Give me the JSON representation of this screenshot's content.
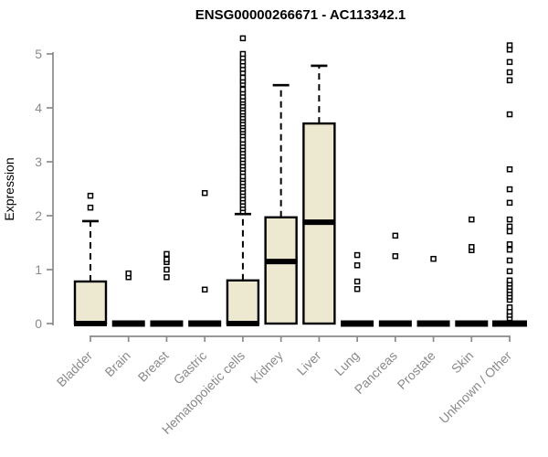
{
  "chart_data": {
    "type": "boxplot",
    "title": "ENSG00000266671 - AC113342.1",
    "xlabel": "",
    "ylabel": "Expression",
    "ylim": [
      0,
      5
    ],
    "yticks": [
      0,
      1,
      2,
      3,
      4,
      5
    ],
    "grid": false,
    "legend": null,
    "colors": {
      "box_fill": "#EDE8D0",
      "box_border": "#000000",
      "median": "#000000",
      "axis": "#8A8A8A",
      "tick_label": "#8A8A8A",
      "title": "#000000",
      "background": "#FFFFFF"
    },
    "categories": [
      {
        "label": "Bladder",
        "q1": 0,
        "median": 0,
        "q3": 0.78,
        "whisker_low": 0,
        "whisker_high": 1.9,
        "outliers": [
          2.15,
          2.37
        ]
      },
      {
        "label": "Brain",
        "q1": 0,
        "median": 0,
        "q3": 0,
        "whisker_low": 0,
        "whisker_high": 0,
        "outliers": [
          0.86,
          0.93
        ]
      },
      {
        "label": "Breast",
        "q1": 0,
        "median": 0,
        "q3": 0,
        "whisker_low": 0,
        "whisker_high": 0,
        "outliers": [
          0.86,
          1.0,
          1.14,
          1.19,
          1.29
        ]
      },
      {
        "label": "Gastric",
        "q1": 0,
        "median": 0,
        "q3": 0,
        "whisker_low": 0,
        "whisker_high": 0,
        "outliers": [
          0.63,
          2.42
        ]
      },
      {
        "label": "Hematopoietic cells",
        "q1": 0,
        "median": 0,
        "q3": 0.8,
        "whisker_low": 0,
        "whisker_high": 2.03,
        "outliers": [
          2.08,
          2.14,
          2.2,
          2.26,
          2.32,
          2.38,
          2.44,
          2.5,
          2.56,
          2.62,
          2.68,
          2.73,
          2.81,
          2.87,
          2.93,
          2.99,
          3.05,
          3.11,
          3.17,
          3.23,
          3.29,
          3.35,
          3.41,
          3.49,
          3.55,
          3.6,
          3.66,
          3.71,
          3.77,
          3.82,
          3.88,
          3.93,
          3.99,
          4.04,
          4.1,
          4.15,
          4.21,
          4.28,
          4.34,
          4.44,
          4.5,
          4.56,
          4.65,
          4.72,
          4.79,
          4.86,
          4.93,
          5.0,
          5.29
        ]
      },
      {
        "label": "Kidney",
        "q1": 0,
        "median": 1.15,
        "q3": 1.97,
        "whisker_low": 0,
        "whisker_high": 4.42,
        "outliers": []
      },
      {
        "label": "Liver",
        "q1": 0,
        "median": 1.88,
        "q3": 3.71,
        "whisker_low": 0,
        "whisker_high": 4.78,
        "outliers": []
      },
      {
        "label": "Lung",
        "q1": 0,
        "median": 0,
        "q3": 0,
        "whisker_low": 0,
        "whisker_high": 0,
        "outliers": [
          0.64,
          0.78,
          1.08,
          1.27
        ]
      },
      {
        "label": "Pancreas",
        "q1": 0,
        "median": 0,
        "q3": 0,
        "whisker_low": 0,
        "whisker_high": 0,
        "outliers": [
          1.25,
          1.63
        ]
      },
      {
        "label": "Prostate",
        "q1": 0,
        "median": 0,
        "q3": 0,
        "whisker_low": 0,
        "whisker_high": 0,
        "outliers": [
          1.2
        ]
      },
      {
        "label": "Skin",
        "q1": 0,
        "median": 0,
        "q3": 0,
        "whisker_low": 0,
        "whisker_high": 0,
        "outliers": [
          1.36,
          1.42,
          1.93
        ]
      },
      {
        "label": "Unknown / Other",
        "q1": 0,
        "median": 0,
        "q3": 0,
        "whisker_low": 0,
        "whisker_high": 0,
        "outliers": [
          0.1,
          0.16,
          0.22,
          0.3,
          0.44,
          0.5,
          0.56,
          0.62,
          0.68,
          0.74,
          0.8,
          0.97,
          1.17,
          1.37,
          1.47,
          1.71,
          1.8,
          1.93,
          2.24,
          2.49,
          2.86,
          3.88,
          4.51,
          4.66,
          4.85,
          5.08,
          5.16
        ]
      }
    ]
  }
}
